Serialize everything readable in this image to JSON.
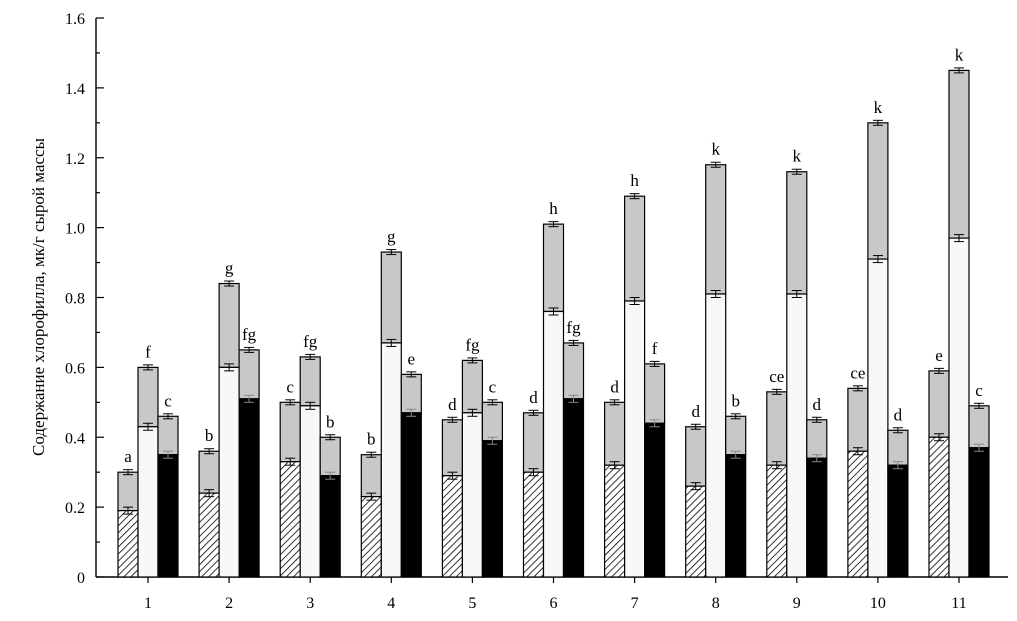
{
  "chart_data": {
    "type": "bar",
    "stacked": true,
    "ylabel": "Содержание хлорофилла, мк/г сырой массы",
    "xlabel": "",
    "ylim": [
      0,
      1.6
    ],
    "yticks": [
      "0",
      "0.2",
      "0.4",
      "0.6",
      "0.8",
      "1.0",
      "1.2",
      "1.4",
      "1.6"
    ],
    "ytick_values": [
      0,
      0.2,
      0.4,
      0.6,
      0.8,
      1.0,
      1.2,
      1.4,
      1.6
    ],
    "categories": [
      "1",
      "2",
      "3",
      "4",
      "5",
      "6",
      "7",
      "8",
      "9",
      "10",
      "11"
    ],
    "legend": "none",
    "grid": false,
    "colors": {
      "total_fill": "#c8c8c8",
      "light_fill": "#f8f8f8",
      "dark_fill": "#000000",
      "hatch": "#000000"
    },
    "groups": [
      {
        "bars": [
          {
            "style": "hatched",
            "lower": 0.19,
            "total": 0.3,
            "label": "a"
          },
          {
            "style": "light",
            "lower": 0.43,
            "total": 0.6,
            "label": "f"
          },
          {
            "style": "dark",
            "lower": 0.35,
            "total": 0.46,
            "label": "c"
          }
        ]
      },
      {
        "bars": [
          {
            "style": "hatched",
            "lower": 0.24,
            "total": 0.36,
            "label": "b"
          },
          {
            "style": "light",
            "lower": 0.6,
            "total": 0.84,
            "label": "g"
          },
          {
            "style": "dark",
            "lower": 0.51,
            "total": 0.65,
            "label": "fg"
          }
        ]
      },
      {
        "bars": [
          {
            "style": "hatched",
            "lower": 0.33,
            "total": 0.5,
            "label": "c"
          },
          {
            "style": "light",
            "lower": 0.49,
            "total": 0.63,
            "label": "fg"
          },
          {
            "style": "dark",
            "lower": 0.29,
            "total": 0.4,
            "label": "b"
          }
        ]
      },
      {
        "bars": [
          {
            "style": "hatched",
            "lower": 0.23,
            "total": 0.35,
            "label": "b"
          },
          {
            "style": "light",
            "lower": 0.67,
            "total": 0.93,
            "label": "g"
          },
          {
            "style": "dark",
            "lower": 0.47,
            "total": 0.58,
            "label": "e"
          }
        ]
      },
      {
        "bars": [
          {
            "style": "hatched",
            "lower": 0.29,
            "total": 0.45,
            "label": "d"
          },
          {
            "style": "light",
            "lower": 0.47,
            "total": 0.62,
            "label": "fg"
          },
          {
            "style": "dark",
            "lower": 0.39,
            "total": 0.5,
            "label": "c"
          }
        ]
      },
      {
        "bars": [
          {
            "style": "hatched",
            "lower": 0.3,
            "total": 0.47,
            "label": "d"
          },
          {
            "style": "light",
            "lower": 0.76,
            "total": 1.01,
            "label": "h"
          },
          {
            "style": "dark",
            "lower": 0.51,
            "total": 0.67,
            "label": "fg"
          }
        ]
      },
      {
        "bars": [
          {
            "style": "hatched",
            "lower": 0.32,
            "total": 0.5,
            "label": "d"
          },
          {
            "style": "light",
            "lower": 0.79,
            "total": 1.09,
            "label": "h"
          },
          {
            "style": "dark",
            "lower": 0.44,
            "total": 0.61,
            "label": "f"
          }
        ]
      },
      {
        "bars": [
          {
            "style": "hatched",
            "lower": 0.26,
            "total": 0.43,
            "label": "d"
          },
          {
            "style": "light",
            "lower": 0.81,
            "total": 1.18,
            "label": "k"
          },
          {
            "style": "dark",
            "lower": 0.35,
            "total": 0.46,
            "label": "b"
          }
        ]
      },
      {
        "bars": [
          {
            "style": "hatched",
            "lower": 0.32,
            "total": 0.53,
            "label": "ce"
          },
          {
            "style": "light",
            "lower": 0.81,
            "total": 1.16,
            "label": "k"
          },
          {
            "style": "dark",
            "lower": 0.34,
            "total": 0.45,
            "label": "d"
          }
        ]
      },
      {
        "bars": [
          {
            "style": "hatched",
            "lower": 0.36,
            "total": 0.54,
            "label": "ce"
          },
          {
            "style": "light",
            "lower": 0.91,
            "total": 1.3,
            "label": "k"
          },
          {
            "style": "dark",
            "lower": 0.32,
            "total": 0.42,
            "label": "d"
          }
        ]
      },
      {
        "bars": [
          {
            "style": "hatched",
            "lower": 0.4,
            "total": 0.59,
            "label": "e"
          },
          {
            "style": "light",
            "lower": 0.97,
            "total": 1.45,
            "label": "k"
          },
          {
            "style": "dark",
            "lower": 0.37,
            "total": 0.49,
            "label": "c"
          }
        ]
      }
    ]
  }
}
